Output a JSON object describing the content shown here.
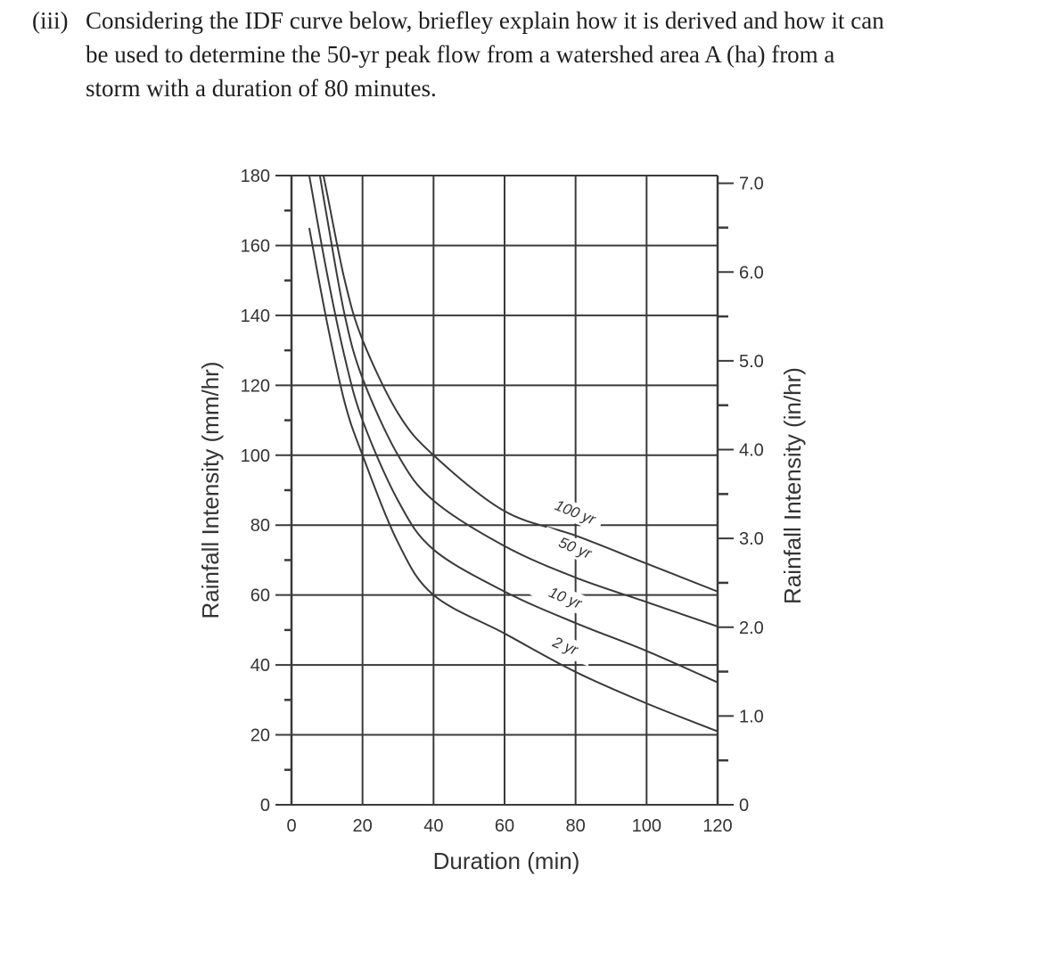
{
  "question": {
    "number": "(iii)",
    "line1": "Considering the IDF curve below, briefley explain how it is derived and how it can",
    "line2": "be used to determine the 50-yr peak flow from a watershed area A (ha) from a",
    "line3": "storm with a duration of 80 minutes."
  },
  "chart": {
    "xlabel": "Duration (min)",
    "ylabel_left": "Rainfall Intensity (mm/hr)",
    "ylabel_right": "Rainfall Intensity (in/hr)",
    "x_ticks": [
      "0",
      "20",
      "40",
      "60",
      "80",
      "100",
      "120"
    ],
    "y_left_ticks": [
      "0",
      "20",
      "40",
      "60",
      "80",
      "100",
      "120",
      "140",
      "160",
      "180"
    ],
    "y_right_ticks": [
      "0",
      "1.0",
      "2.0",
      "3.0",
      "4.0",
      "5.0",
      "6.0",
      "7.0"
    ],
    "curve_labels": [
      "100 yr",
      "50 yr",
      "10 yr",
      "2 yr"
    ]
  },
  "chart_data": {
    "type": "line",
    "title": "IDF curve",
    "xlabel": "Duration (min)",
    "ylabel": "Rainfall Intensity (mm/hr)",
    "ylabel_secondary": "Rainfall Intensity (in/hr)",
    "xlim": [
      0,
      120
    ],
    "ylim": [
      0,
      180
    ],
    "ylim_secondary": [
      0,
      7.0
    ],
    "grid": true,
    "legend": "inline labels on curves",
    "x": [
      5,
      10,
      15,
      20,
      30,
      40,
      60,
      80,
      100,
      120
    ],
    "series": [
      {
        "name": "100 yr",
        "values": [
          null,
          175,
          150,
          133,
          112,
          100,
          84,
          77,
          69,
          61
        ]
      },
      {
        "name": "50 yr",
        "values": [
          null,
          168,
          140,
          122,
          100,
          87,
          74,
          65,
          58,
          51
        ]
      },
      {
        "name": "10 yr",
        "values": [
          180,
          152,
          128,
          110,
          87,
          73,
          61,
          52,
          44,
          35
        ]
      },
      {
        "name": "2 yr",
        "values": [
          165,
          138,
          115,
          100,
          75,
          60,
          49,
          38,
          29,
          21
        ]
      }
    ]
  }
}
